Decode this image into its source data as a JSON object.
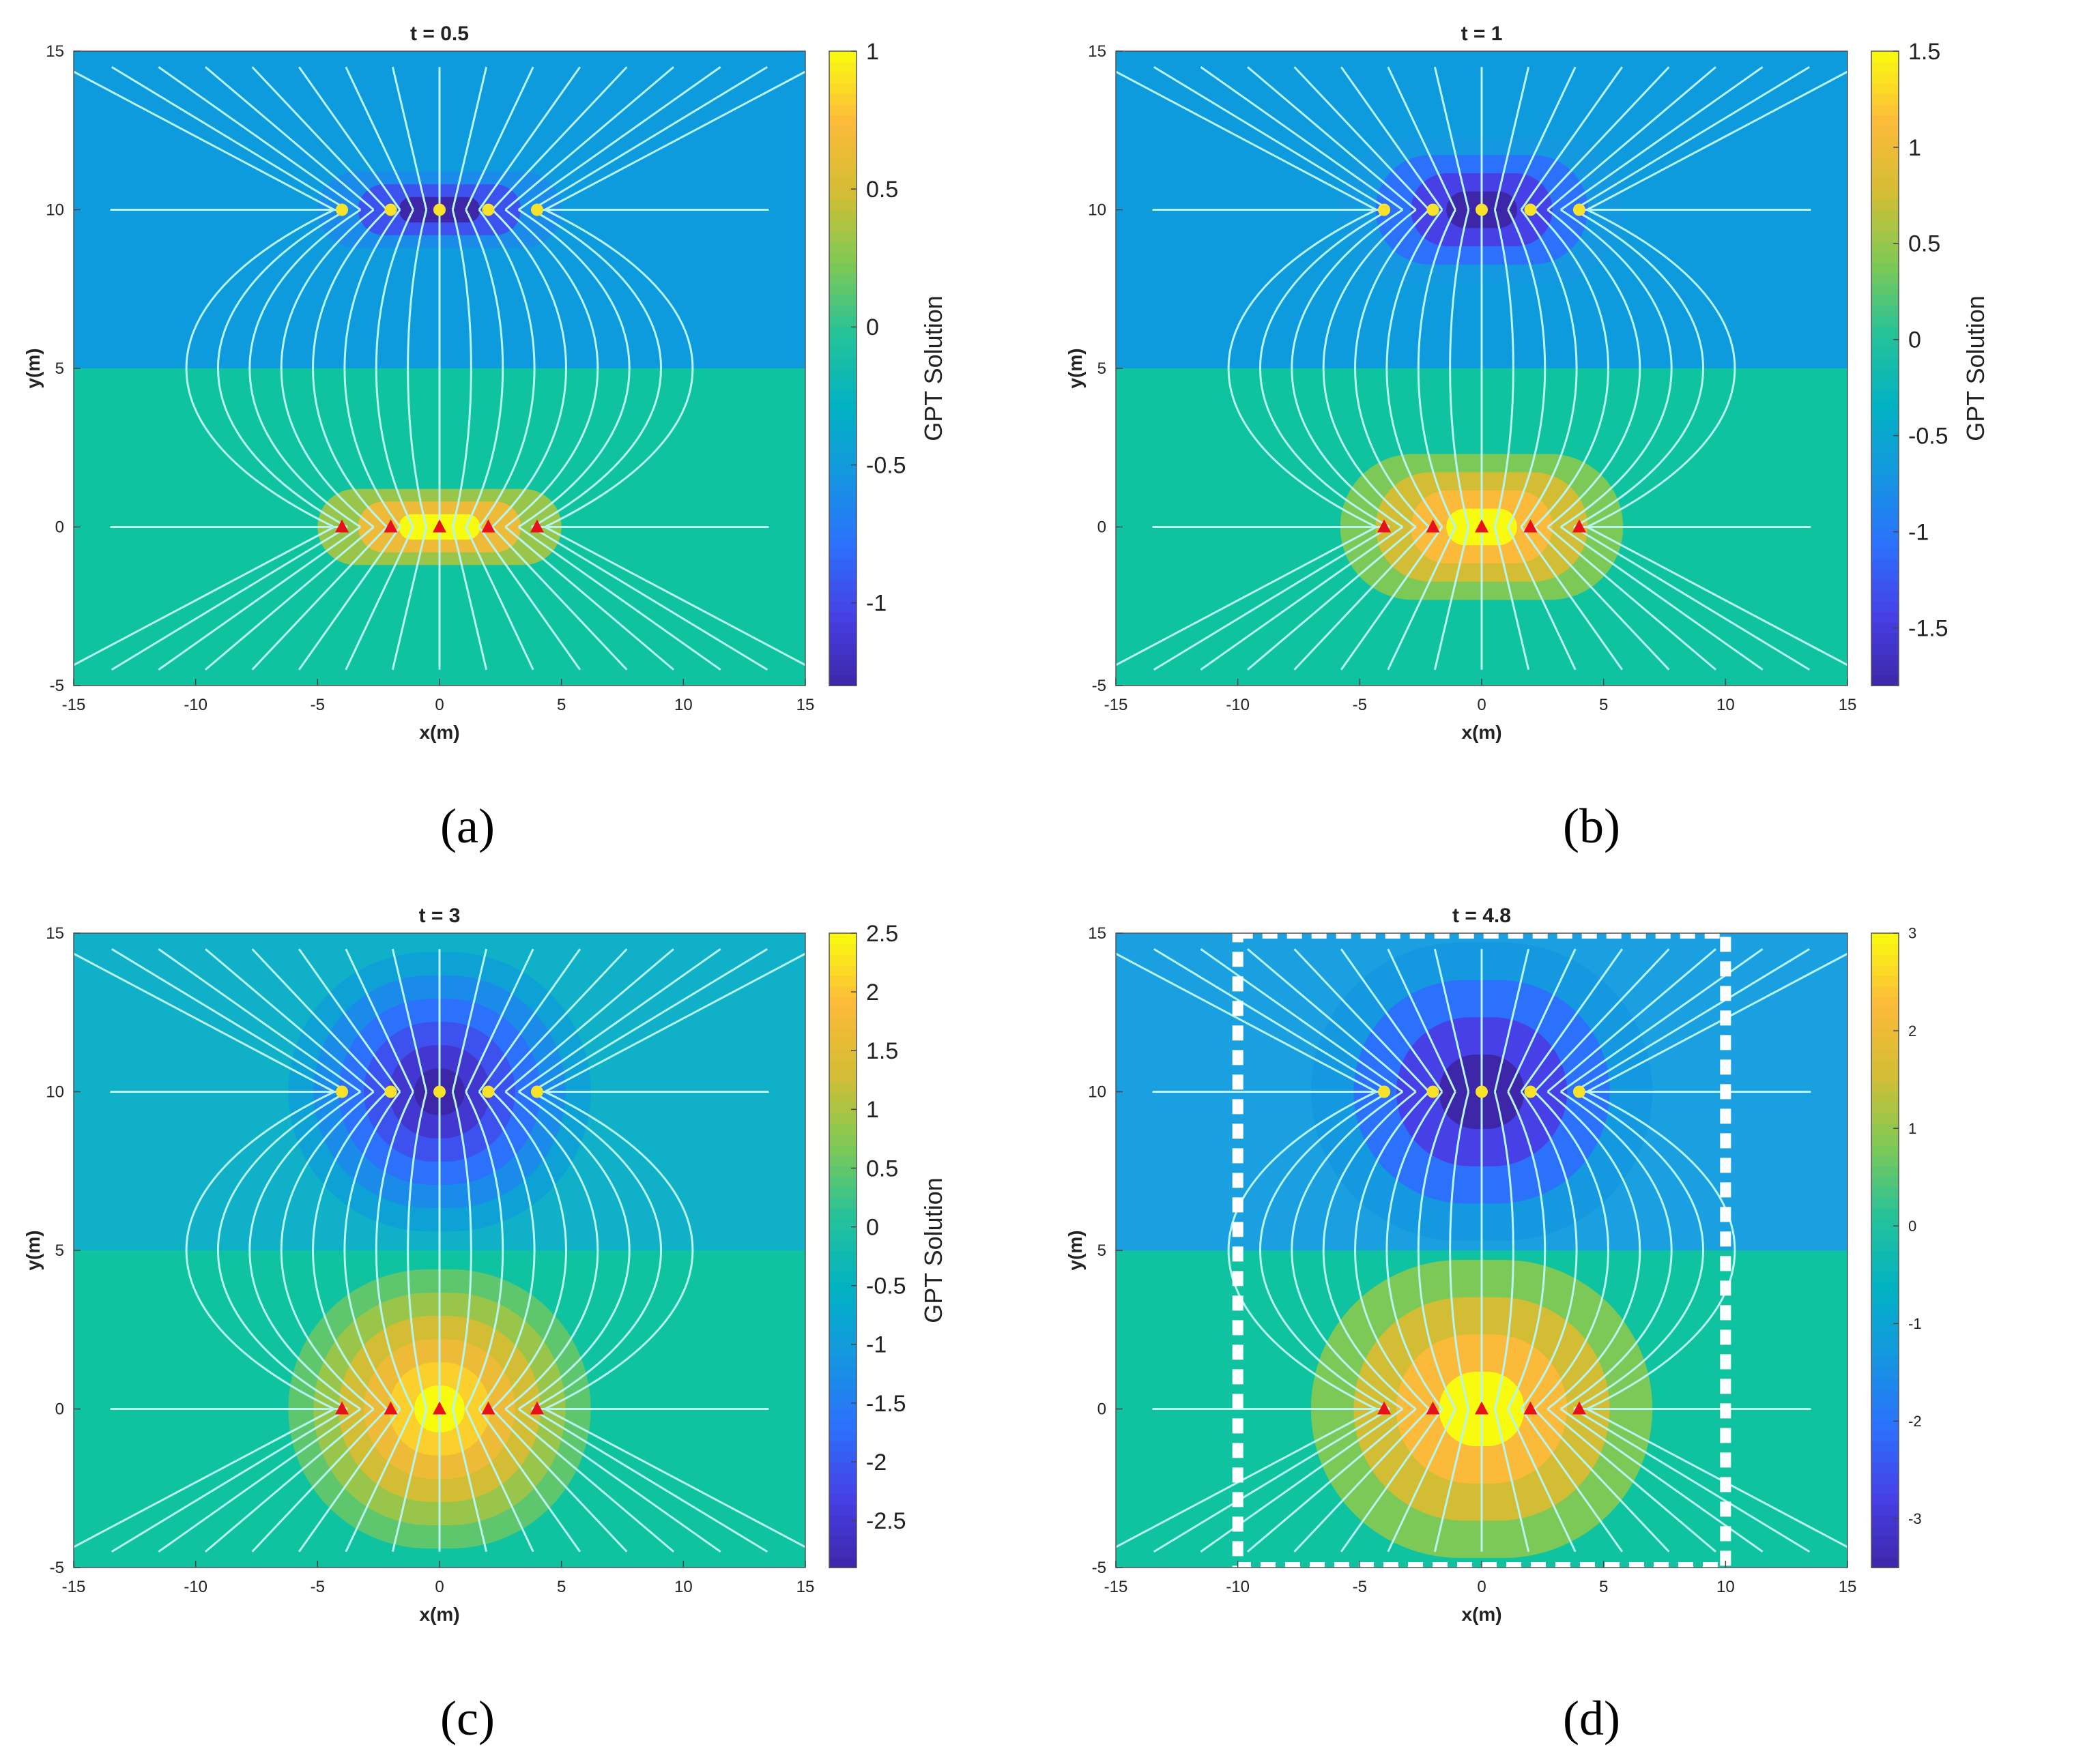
{
  "figure": {
    "captions": [
      "(a)",
      "(b)",
      "(c)",
      "(d)"
    ]
  },
  "colors": {
    "upper_background": "#0d9bdd",
    "lower_background": "#0fc2a0",
    "upper_background_d": "#1aa0e0",
    "streamline": "#b8f5ee",
    "source_marker": "#f8e32a",
    "sink_marker": "#e8101a",
    "dashed_box": "#ffffff"
  },
  "chart_data": [
    {
      "type": "heatmap",
      "panel": "a",
      "title": "t = 0.5",
      "xlabel": "x(m)",
      "ylabel": "y(m)",
      "xlim": [
        -15,
        15
      ],
      "ylim": [
        -5,
        15
      ],
      "xticks": [
        -15,
        -10,
        -5,
        0,
        5,
        10,
        15
      ],
      "yticks": [
        -5,
        0,
        5,
        10,
        15
      ],
      "interface_y": 5,
      "colorbar": {
        "label": "GPT Solution",
        "range": [
          -1.3,
          1
        ],
        "ticks": [
          -1,
          -0.5,
          0,
          0.5,
          1
        ]
      },
      "sources": {
        "y": 10,
        "x": [
          -4,
          -2,
          0,
          2,
          4
        ]
      },
      "sinks": {
        "y": 0,
        "x": [
          -4,
          -2,
          0,
          2,
          4
        ]
      },
      "anomaly_width_x": 5,
      "anomaly_height_y": 1.2,
      "anomaly_levels": 3
    },
    {
      "type": "heatmap",
      "panel": "b",
      "title": "t = 1",
      "xlabel": "x(m)",
      "ylabel": "y(m)",
      "xlim": [
        -15,
        15
      ],
      "ylim": [
        -5,
        15
      ],
      "xticks": [
        -15,
        -10,
        -5,
        0,
        5,
        10,
        15
      ],
      "yticks": [
        -5,
        0,
        5,
        10,
        15
      ],
      "interface_y": 5,
      "colorbar": {
        "label": "GPT Solution",
        "range": [
          -1.8,
          1.5
        ],
        "ticks": [
          -1.5,
          -1,
          -0.5,
          0,
          0.5,
          1,
          1.5
        ]
      },
      "sources": {
        "y": 10,
        "x": [
          -4,
          -2,
          0,
          2,
          4
        ]
      },
      "sinks": {
        "y": 0,
        "x": [
          -4,
          -2,
          0,
          2,
          4
        ]
      },
      "anomaly_width_x": 5.8,
      "anomaly_height_y": 2.3,
      "anomaly_levels": 4
    },
    {
      "type": "heatmap",
      "panel": "c",
      "title": "t = 3",
      "xlabel": "x(m)",
      "ylabel": "y(m)",
      "xlim": [
        -15,
        15
      ],
      "ylim": [
        -5,
        15
      ],
      "xticks": [
        -15,
        -10,
        -5,
        0,
        5,
        10,
        15
      ],
      "yticks": [
        -5,
        0,
        5,
        10,
        15
      ],
      "interface_y": 5,
      "colorbar": {
        "label": "GPT Solution",
        "range": [
          -2.9,
          2.5
        ],
        "ticks": [
          -2.5,
          -2,
          -1.5,
          -1,
          -0.5,
          0,
          0.5,
          1,
          1.5,
          2,
          2.5
        ]
      },
      "sources": {
        "y": 10,
        "x": [
          -4,
          -2,
          0,
          2,
          4
        ]
      },
      "sinks": {
        "y": 0,
        "x": [
          -4,
          -2,
          0,
          2,
          4
        ]
      },
      "anomaly_width_x": 6.2,
      "anomaly_height_y": 4.4,
      "anomaly_levels": 6
    },
    {
      "type": "heatmap",
      "panel": "d",
      "title": "t = 4.8",
      "xlabel": "x(m)",
      "ylabel": "y(m)",
      "xlim": [
        -15,
        15
      ],
      "ylim": [
        -5,
        15
      ],
      "xticks": [
        -15,
        -10,
        -5,
        0,
        5,
        10,
        15
      ],
      "yticks": [
        -5,
        0,
        5,
        10,
        15
      ],
      "interface_y": 5,
      "colorbar": {
        "label": "",
        "range": [
          -3.5,
          3
        ],
        "ticks": [
          -3,
          -2,
          -1,
          0,
          1,
          2,
          3
        ]
      },
      "sources": {
        "y": 10,
        "x": [
          -4,
          -2,
          0,
          2,
          4
        ]
      },
      "sinks": {
        "y": 0,
        "x": [
          -4,
          -2,
          0,
          2,
          4
        ]
      },
      "anomaly_width_x": 7,
      "anomaly_height_y": 4.7,
      "anomaly_levels": 4,
      "dashed_box": {
        "x": [
          -10,
          10
        ],
        "y": [
          -5,
          15
        ]
      }
    }
  ]
}
